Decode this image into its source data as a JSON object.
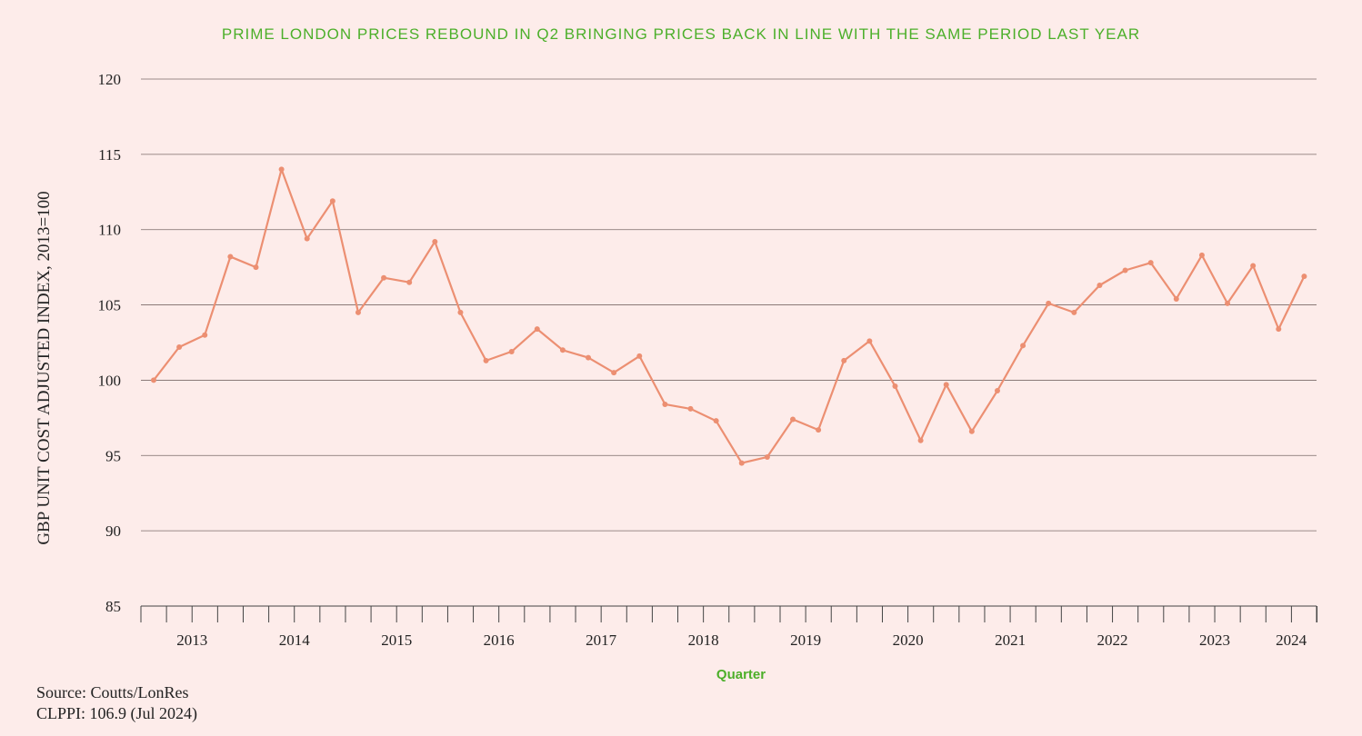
{
  "chart_data": {
    "type": "line",
    "title": "PRIME LONDON PRICES REBOUND IN Q2 BRINGING PRICES BACK IN LINE WITH THE SAME PERIOD LAST YEAR",
    "xlabel": "Quarter",
    "ylabel": "GBP UNIT COST ADJUSTED INDEX, 2013=100",
    "ylim": [
      85,
      120
    ],
    "yticks": [
      "85",
      "90",
      "95",
      "100",
      "105",
      "110",
      "115",
      "120"
    ],
    "grid": true,
    "year_labels": [
      "2013",
      "2014",
      "2015",
      "2016",
      "2017",
      "2018",
      "2019",
      "2020",
      "2021",
      "2022",
      "2023",
      "2024"
    ],
    "line_color": "#ec8f72",
    "series": [
      {
        "values": [
          100.0,
          102.2,
          103.0,
          108.2,
          107.5,
          114.0,
          109.4,
          111.9,
          104.5,
          106.8,
          106.5,
          109.2,
          104.5,
          101.3,
          101.9,
          103.4,
          102.0,
          101.5,
          100.5,
          101.6,
          98.4,
          98.1,
          97.3,
          94.5,
          94.9,
          97.4,
          96.7,
          101.3,
          102.6,
          99.6,
          96.0,
          99.7,
          96.6,
          99.3,
          102.3,
          105.1,
          104.5,
          106.3,
          107.3,
          107.8,
          105.4,
          108.3,
          105.1,
          107.6,
          103.4,
          106.9
        ]
      }
    ]
  },
  "source": "Source: Coutts/LonRes",
  "clppi": "CLPPI: 106.9 (Jul 2024)"
}
